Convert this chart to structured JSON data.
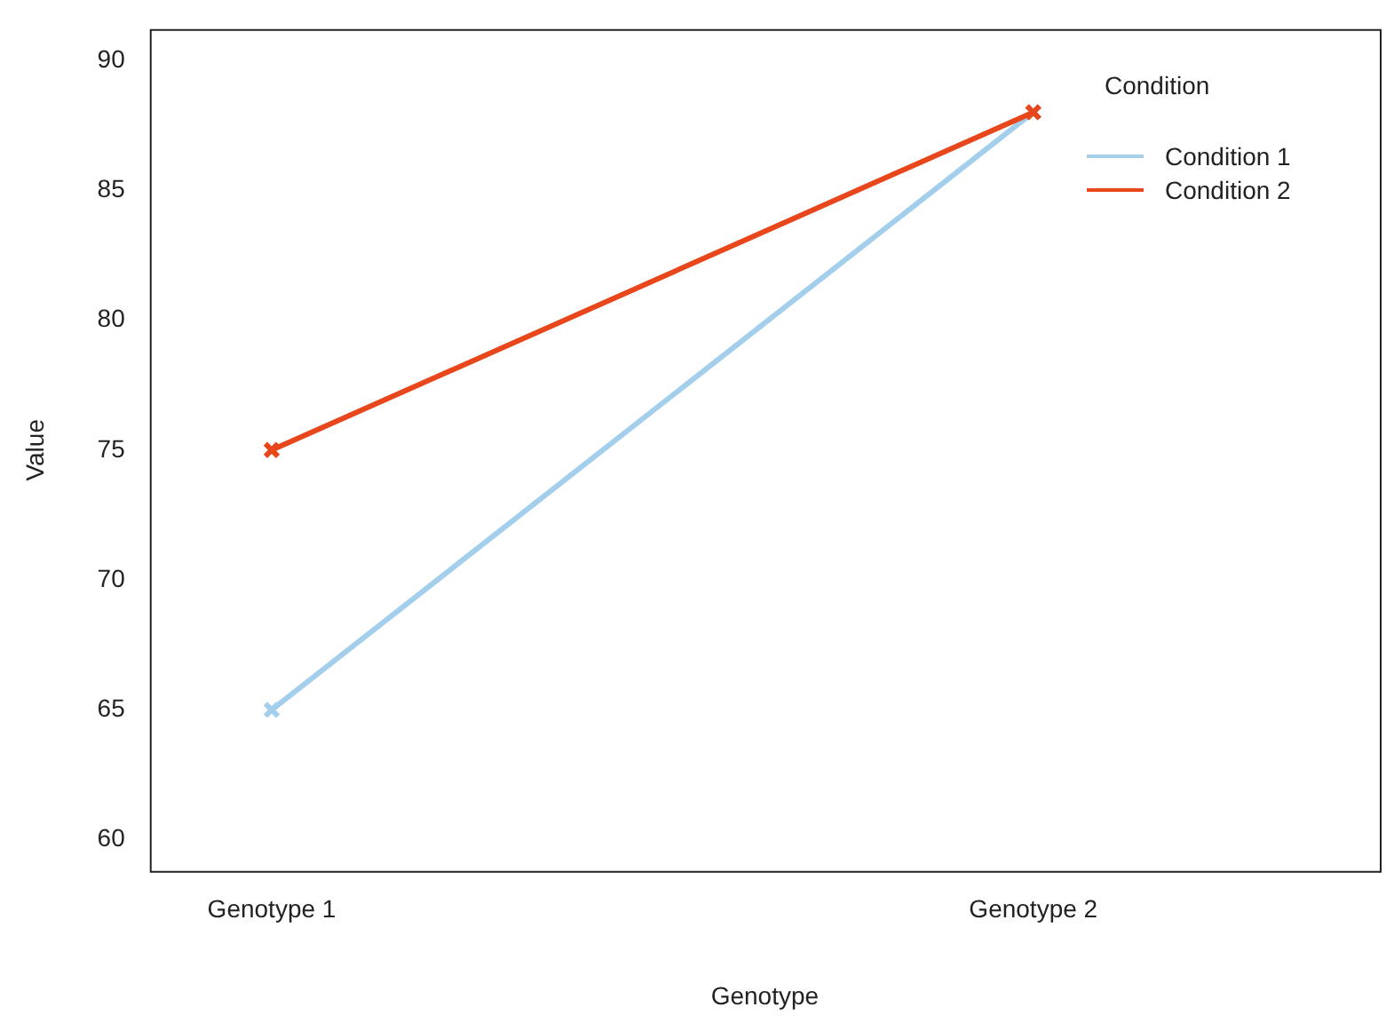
{
  "chart_data": {
    "type": "line",
    "xlabel": "Genotype",
    "ylabel": "Value",
    "legend_title": "Condition",
    "categories": [
      "Genotype 1",
      "Genotype 2"
    ],
    "series": [
      {
        "name": "Condition 1",
        "color": "#a3cfec",
        "values": [
          65,
          88
        ]
      },
      {
        "name": "Condition 2",
        "color": "#e8461b",
        "values": [
          75,
          88
        ]
      }
    ],
    "ylim": [
      58.8,
      91.2
    ],
    "yticks": [
      60,
      65,
      70,
      75,
      80,
      85,
      90
    ],
    "grid": false,
    "legend": "top right",
    "marker": "cross",
    "line_style": "solid"
  }
}
